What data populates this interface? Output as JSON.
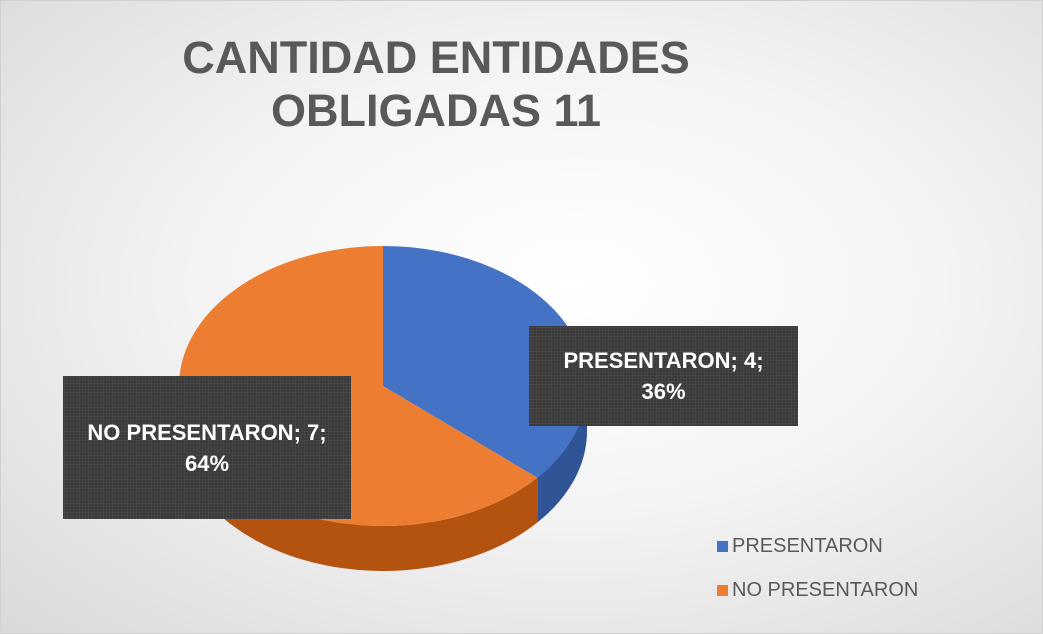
{
  "chart_data": {
    "type": "pie",
    "title": "CANTIDAD ENTIDADES OBLIGADAS 11",
    "categories": [
      "PRESENTARON",
      "NO PRESENTARON"
    ],
    "values": [
      4,
      7
    ],
    "value_labels": [
      "PRESENTARON; 4; 36%",
      "NO PRESENTARON; 7; 64%"
    ],
    "colors": [
      "#4472c4",
      "#ed7d31"
    ],
    "side_colors": [
      "#2f5597",
      "#b4530f"
    ],
    "legend": "bottom-right"
  }
}
